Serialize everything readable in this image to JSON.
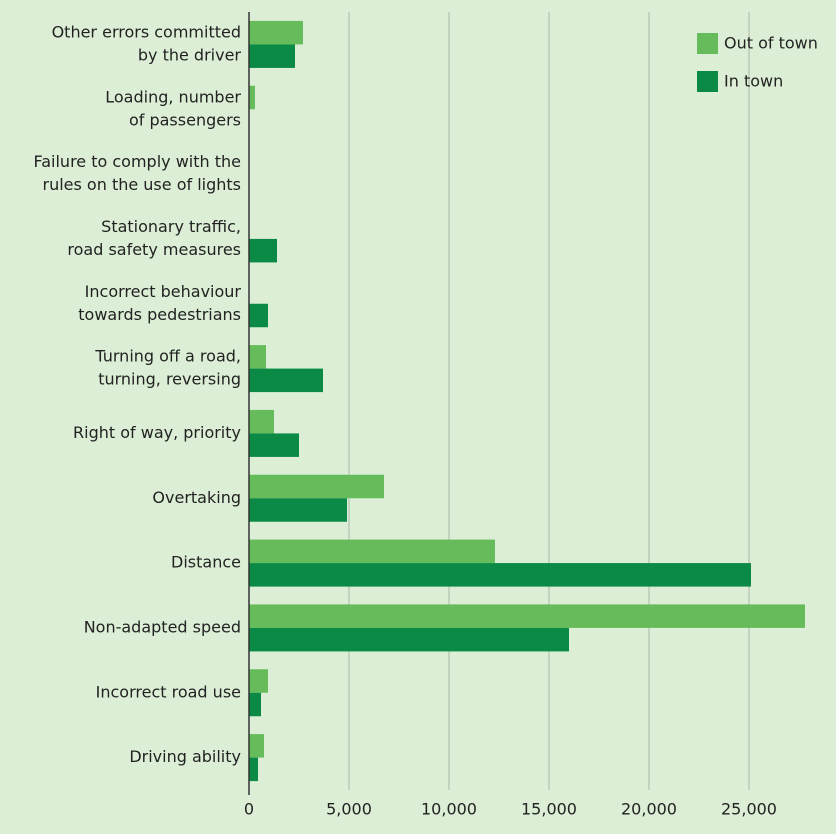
{
  "chart_data": {
    "type": "hbar",
    "categories": [
      [
        "Other errors committed",
        "by the driver"
      ],
      [
        "Loading, number",
        "of passengers"
      ],
      [
        "Failure to comply with the",
        "rules on the use of lights"
      ],
      [
        "Stationary traffic,",
        "road safety measures"
      ],
      [
        "Incorrect behaviour",
        "towards pedestrians"
      ],
      [
        "Turning off a road,",
        "turning, reversing"
      ],
      [
        "Right of way, priority"
      ],
      [
        "Overtaking"
      ],
      [
        "Distance"
      ],
      [
        "Non-adapted speed"
      ],
      [
        "Incorrect road use"
      ],
      [
        "Driving ability"
      ]
    ],
    "series": [
      {
        "name": "Out of town",
        "color": "#66bb5a",
        "values": [
          2700,
          300,
          0,
          0,
          0,
          850,
          1250,
          6750,
          12300,
          27800,
          950,
          750
        ]
      },
      {
        "name": "In town",
        "color": "#0a8a45",
        "values": [
          2300,
          0,
          0,
          1400,
          950,
          3700,
          2500,
          4900,
          25100,
          16000,
          600,
          450
        ]
      }
    ],
    "xlim": [
      0,
      29350
    ],
    "xticks": [
      0,
      {
        "value": 5000,
        "label": "5,000"
      },
      {
        "value": 10000,
        "label": "10,000"
      },
      {
        "value": 15000,
        "label": "15,000"
      },
      {
        "value": 20000,
        "label": "20,000"
      },
      {
        "value": 25000,
        "label": "25,000"
      }
    ],
    "grid": true,
    "legend": "upper right"
  }
}
